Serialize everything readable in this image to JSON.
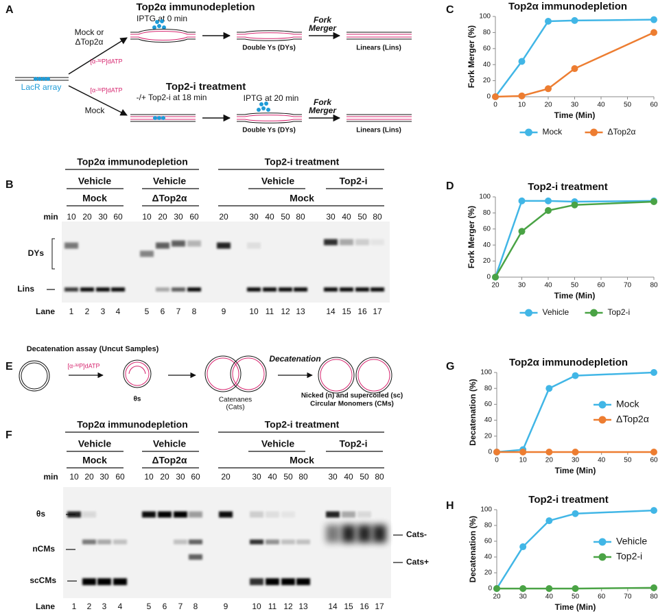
{
  "letters": [
    "A",
    "B",
    "C",
    "D",
    "E",
    "F",
    "G",
    "H"
  ],
  "panel_a": {
    "lacr": "LacR array",
    "top": {
      "title": "Top2α immunodepletion",
      "iptg": "IPTG at 0 min",
      "condition": [
        "Mock or",
        "ΔTop2α"
      ],
      "label": "[α-³²P]dATP",
      "dys": "Double Ys (DYs)",
      "fork": [
        "Fork",
        "Merger"
      ],
      "lins": "Linears (Lins)"
    },
    "bottom": {
      "title": "Top2-i treatment",
      "drug": "-/+ Top2-i at 18 min",
      "iptg": "IPTG at 20 min",
      "condition": "Mock",
      "label": "[α-³²P]dATP",
      "dys": "Double Ys (DYs)",
      "fork": [
        "Fork",
        "Merger"
      ],
      "lins": "Linears (Lins)"
    }
  },
  "panel_b": {
    "groups": [
      "Top2α immunodepletion",
      "Top2-i treatment"
    ],
    "treatments": [
      "Vehicle",
      "Vehicle",
      "Vehicle",
      "Top2-i"
    ],
    "conditions": [
      "Mock",
      "ΔTop2α",
      "Mock"
    ],
    "min_label": "min",
    "mins": [
      10,
      20,
      30,
      60,
      10,
      20,
      30,
      60,
      20,
      30,
      40,
      50,
      80,
      30,
      40,
      50,
      80
    ],
    "lane_label": "Lane",
    "lanes": [
      1,
      2,
      3,
      4,
      5,
      6,
      7,
      8,
      9,
      10,
      11,
      12,
      13,
      14,
      15,
      16,
      17
    ],
    "rows": [
      "DYs",
      "Lins"
    ]
  },
  "panel_e": {
    "title": "Decatenation assay (Uncut Samples)",
    "label": "[α-³²P]dATP",
    "thetas": "θs",
    "cats": [
      "Catenanes",
      "(Cats)"
    ],
    "decat": "Decatenation",
    "cms": [
      "Nicked (n) and supercoiled (sc)",
      "Circular Monomers (CMs)"
    ]
  },
  "panel_f": {
    "groups": [
      "Top2α immunodepletion",
      "Top2-i treatment"
    ],
    "treatments": [
      "Vehicle",
      "Vehicle",
      "Vehicle",
      "Top2-i"
    ],
    "conditions": [
      "Mock",
      "ΔTop2α",
      "Mock"
    ],
    "min_label": "min",
    "mins": [
      10,
      20,
      30,
      60,
      10,
      20,
      30,
      60,
      20,
      30,
      40,
      50,
      80,
      30,
      40,
      50,
      80
    ],
    "lane_label": "Lane",
    "lanes": [
      1,
      2,
      3,
      4,
      5,
      6,
      7,
      8,
      9,
      10,
      11,
      12,
      13,
      14,
      15,
      16,
      17
    ],
    "rows": [
      "θs",
      "nCMs",
      "scCMs"
    ],
    "side": [
      "Cats-",
      "Cats+"
    ]
  },
  "chart_data": [
    {
      "type": "line",
      "title": "Top2α immunodepletion",
      "x_label": "Time (Min)",
      "y_label": "Fork Merger (%)",
      "x": [
        0,
        10,
        20,
        30,
        60
      ],
      "xlim": [
        0,
        60
      ],
      "xticks": [
        0,
        10,
        20,
        30,
        40,
        50,
        60
      ],
      "ylim": [
        0,
        100
      ],
      "yticks": [
        0,
        20,
        40,
        60,
        80,
        100
      ],
      "legend": "bottom",
      "series": [
        {
          "name": "Mock",
          "color": "#41b6e6",
          "values": [
            0,
            44,
            94,
            95,
            96
          ]
        },
        {
          "name": "ΔTop2α",
          "color": "#ed7d31",
          "values": [
            0,
            1,
            10,
            35,
            80
          ]
        }
      ]
    },
    {
      "type": "line",
      "title": "Top2-i treatment",
      "x_label": "Time (Min)",
      "y_label": "Fork Merger (%)",
      "x": [
        20,
        30,
        40,
        50,
        80
      ],
      "xlim": [
        20,
        80
      ],
      "xticks": [
        20,
        30,
        40,
        50,
        60,
        70,
        80
      ],
      "ylim": [
        0,
        100
      ],
      "yticks": [
        0,
        20,
        40,
        60,
        80,
        100
      ],
      "legend": "bottom",
      "series": [
        {
          "name": "Vehicle",
          "color": "#41b6e6",
          "values": [
            0,
            95,
            95,
            94,
            95
          ]
        },
        {
          "name": "Top2-i",
          "color": "#4aa345",
          "values": [
            0,
            57,
            83,
            90,
            94
          ]
        }
      ]
    },
    {
      "type": "line",
      "title": "Top2α immunodepletion",
      "x_label": "Time (Min)",
      "y_label": "Decatenation (%)",
      "x": [
        0,
        10,
        20,
        30,
        60
      ],
      "xlim": [
        0,
        60
      ],
      "xticks": [
        0,
        10,
        20,
        30,
        40,
        50,
        60
      ],
      "ylim": [
        0,
        100
      ],
      "yticks": [
        0,
        20,
        40,
        60,
        80,
        100
      ],
      "legend": "right",
      "series": [
        {
          "name": "Mock",
          "color": "#41b6e6",
          "values": [
            0,
            3,
            80,
            96,
            100
          ]
        },
        {
          "name": "ΔTop2α",
          "color": "#ed7d31",
          "values": [
            0,
            0,
            0,
            0,
            0
          ]
        }
      ]
    },
    {
      "type": "line",
      "title": "Top2-i treatment",
      "x_label": "Time (Min)",
      "y_label": "Decatenation (%)",
      "x": [
        20,
        30,
        40,
        50,
        80
      ],
      "xlim": [
        20,
        80
      ],
      "xticks": [
        20,
        30,
        40,
        50,
        60,
        70,
        80
      ],
      "ylim": [
        0,
        100
      ],
      "yticks": [
        0,
        20,
        40,
        60,
        80,
        100
      ],
      "legend": "right",
      "series": [
        {
          "name": "Vehicle",
          "color": "#41b6e6",
          "values": [
            0,
            53,
            86,
            95,
            99
          ]
        },
        {
          "name": "Top2-i",
          "color": "#4aa345",
          "values": [
            0,
            0,
            0,
            0,
            1
          ]
        }
      ]
    }
  ]
}
